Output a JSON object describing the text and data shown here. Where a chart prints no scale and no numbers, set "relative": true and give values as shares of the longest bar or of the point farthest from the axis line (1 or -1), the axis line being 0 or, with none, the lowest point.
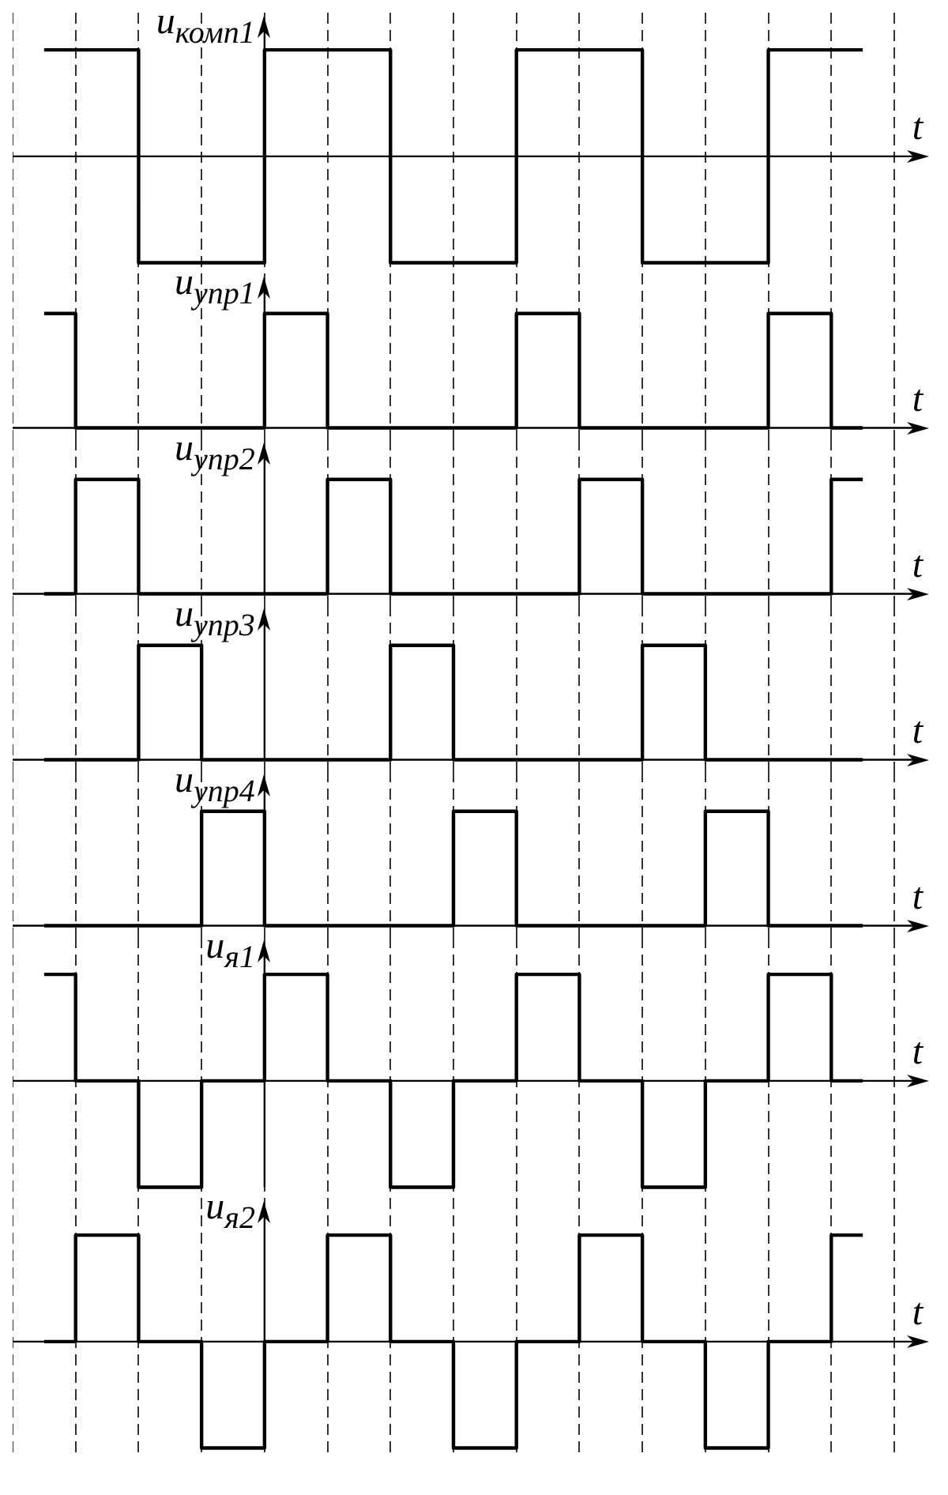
{
  "chart_data": [
    {
      "type": "step",
      "relative": true,
      "ylabel": "u$_{комп1}$",
      "xlabel": "t",
      "categories": [
        null,
        null,
        null,
        null,
        null,
        null,
        null,
        null,
        null,
        null,
        null,
        null,
        null,
        null
      ],
      "grid": "x",
      "legend": false,
      "tick_labels": false,
      "marker": "none",
      "line_style": "solid",
      "series": [
        {
          "color": "#000000",
          "values": [
            1,
            1,
            -1,
            -1,
            1,
            1,
            -1,
            -1,
            1,
            1,
            -1,
            -1,
            1,
            1
          ]
        }
      ]
    },
    {
      "type": "step",
      "relative": true,
      "ylabel": "u$_{упр1}$",
      "xlabel": "t",
      "categories": [
        null,
        null,
        null,
        null,
        null,
        null,
        null,
        null,
        null,
        null,
        null,
        null,
        null,
        null
      ],
      "grid": "x",
      "legend": false,
      "tick_labels": false,
      "marker": "none",
      "line_style": "solid",
      "series": [
        {
          "color": "#000000",
          "values": [
            1,
            0,
            0,
            0,
            1,
            0,
            0,
            0,
            1,
            0,
            0,
            0,
            1,
            0
          ]
        }
      ]
    },
    {
      "type": "step",
      "relative": true,
      "ylabel": "u$_{упр2}$",
      "xlabel": "t",
      "categories": [
        null,
        null,
        null,
        null,
        null,
        null,
        null,
        null,
        null,
        null,
        null,
        null,
        null,
        null
      ],
      "grid": "x",
      "legend": false,
      "tick_labels": false,
      "marker": "none",
      "line_style": "solid",
      "series": [
        {
          "color": "#000000",
          "values": [
            0,
            1,
            0,
            0,
            0,
            1,
            0,
            0,
            0,
            1,
            0,
            0,
            0,
            1
          ]
        }
      ]
    },
    {
      "type": "step",
      "relative": true,
      "ylabel": "u$_{упр3}$",
      "xlabel": "t",
      "categories": [
        null,
        null,
        null,
        null,
        null,
        null,
        null,
        null,
        null,
        null,
        null,
        null,
        null,
        null
      ],
      "grid": "x",
      "legend": false,
      "tick_labels": false,
      "marker": "none",
      "line_style": "solid",
      "series": [
        {
          "color": "#000000",
          "values": [
            0,
            0,
            1,
            0,
            0,
            0,
            1,
            0,
            0,
            0,
            1,
            0,
            0,
            0
          ]
        }
      ]
    },
    {
      "type": "step",
      "relative": true,
      "ylabel": "u$_{упр4}$",
      "xlabel": "t",
      "categories": [
        null,
        null,
        null,
        null,
        null,
        null,
        null,
        null,
        null,
        null,
        null,
        null,
        null,
        null
      ],
      "grid": "x",
      "legend": false,
      "tick_labels": false,
      "marker": "none",
      "line_style": "solid",
      "series": [
        {
          "color": "#000000",
          "values": [
            0,
            0,
            0,
            1,
            0,
            0,
            0,
            1,
            0,
            0,
            0,
            1,
            0,
            0
          ]
        }
      ]
    },
    {
      "type": "step",
      "relative": true,
      "ylabel": "u$_{я1}$",
      "xlabel": "t",
      "categories": [
        null,
        null,
        null,
        null,
        null,
        null,
        null,
        null,
        null,
        null,
        null,
        null,
        null,
        null
      ],
      "grid": "x",
      "legend": false,
      "tick_labels": false,
      "marker": "none",
      "line_style": "solid",
      "series": [
        {
          "color": "#000000",
          "values": [
            1,
            0,
            -1,
            0,
            1,
            0,
            -1,
            0,
            1,
            0,
            -1,
            0,
            1,
            0
          ]
        }
      ]
    },
    {
      "type": "step",
      "relative": true,
      "ylabel": "u$_{я2}$",
      "xlabel": "t",
      "categories": [
        null,
        null,
        null,
        null,
        null,
        null,
        null,
        null,
        null,
        null,
        null,
        null,
        null,
        null
      ],
      "grid": "x",
      "legend": false,
      "tick_labels": false,
      "marker": "none",
      "line_style": "solid",
      "series": [
        {
          "color": "#000000",
          "values": [
            0,
            1,
            0,
            -1,
            0,
            1,
            0,
            -1,
            0,
            1,
            0,
            -1,
            0,
            1
          ]
        }
      ]
    }
  ]
}
